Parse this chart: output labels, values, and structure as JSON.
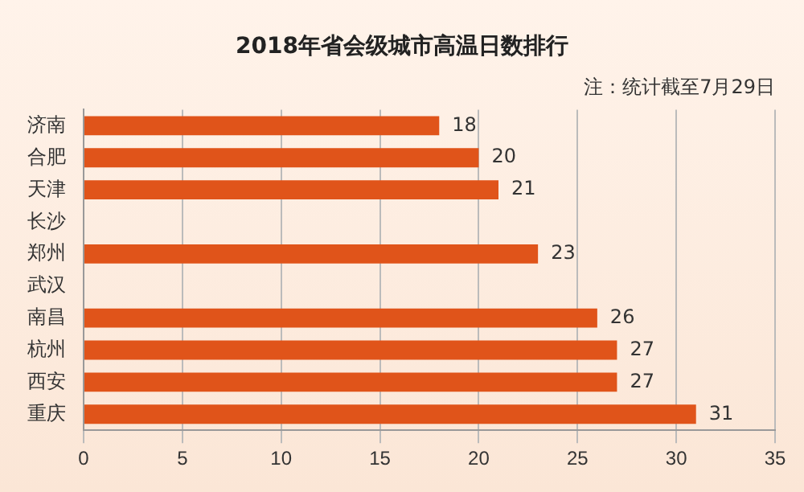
{
  "chart_data": {
    "type": "bar",
    "orientation": "horizontal",
    "title": "2018年省会级城市高温日数排行",
    "annotations": [
      "注：统计截至7月29日"
    ],
    "categories": [
      "济南",
      "合肥",
      "天津",
      "长沙",
      "郑州",
      "武汉",
      "南昌",
      "杭州",
      "西安",
      "重庆"
    ],
    "values": [
      18,
      20,
      21,
      null,
      23,
      null,
      26,
      27,
      27,
      31
    ],
    "color": "#e0541a",
    "xlim": [
      0,
      35
    ],
    "xticks": [
      0,
      5,
      10,
      15,
      20,
      25,
      30,
      35
    ],
    "grid": "x",
    "data_labels": true,
    "legend": false
  }
}
